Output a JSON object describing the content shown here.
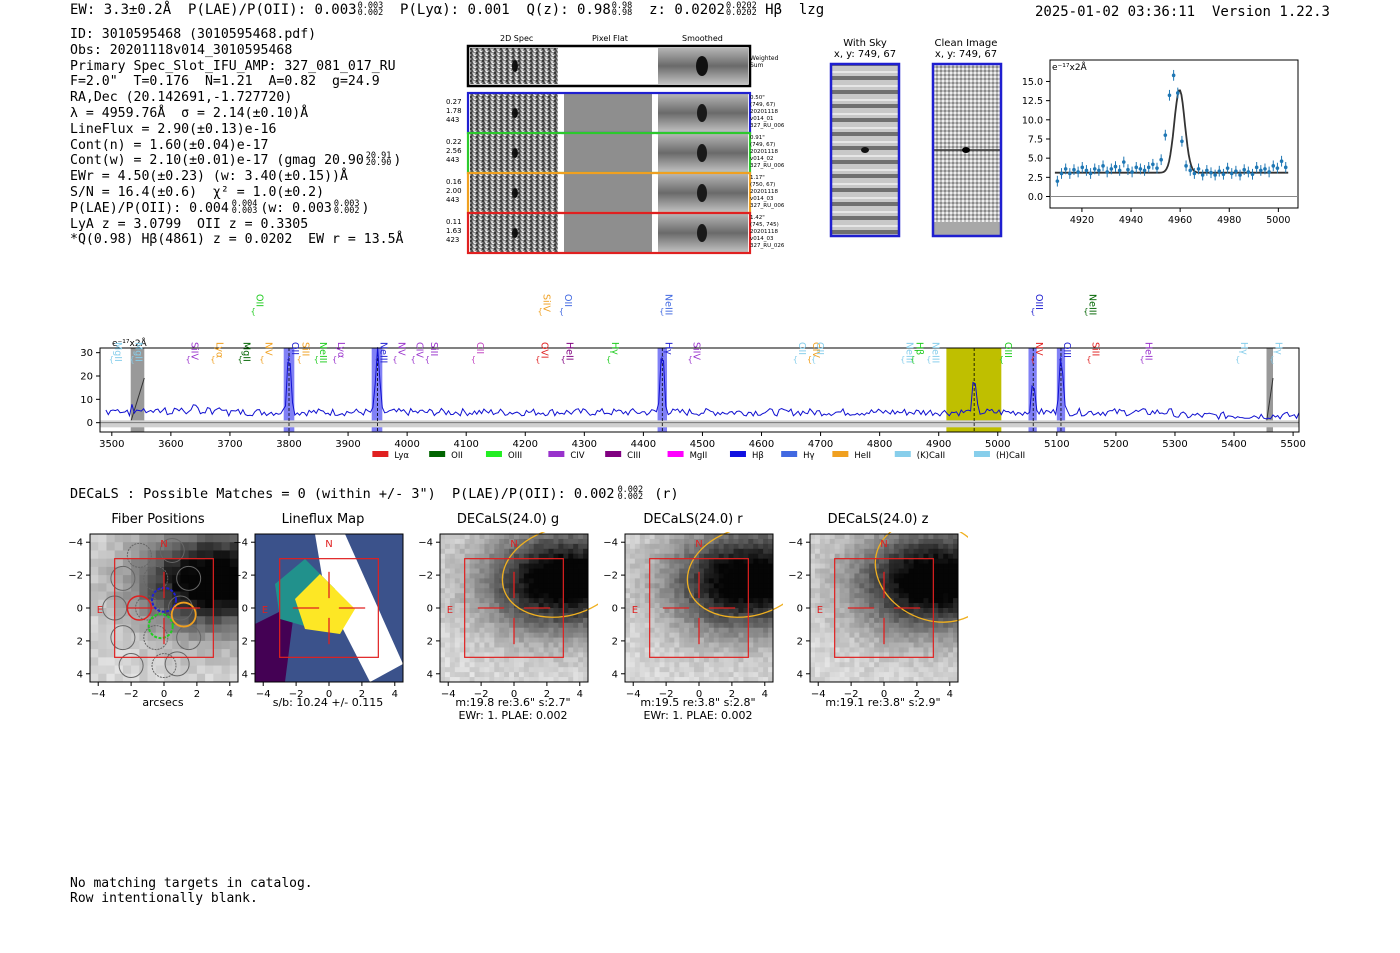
{
  "header": {
    "ew": "EW: 3.3±0.2Å",
    "plae_label": "P(LAE)/P(OII): 0.003",
    "plae_sup": "0.003",
    "plae_sub": "0.002",
    "plya": "P(Lyα): 0.001",
    "qz_label": "Q(z): 0.98",
    "qz_sup": "0.98",
    "qz_sub": "0.98",
    "z_label": "z: 0.0202",
    "z_sup": "0.0202",
    "z_sub": "0.0202",
    "line_id": "Hβ",
    "flag": "lzg",
    "datetime": "2025-01-02 03:36:11",
    "version": "Version 1.22.3"
  },
  "info": {
    "id": "ID: 3010595468 (3010595468.pdf)",
    "obs": "Obs: 20201118v014_3010595468",
    "primary": "Primary Spec_Slot_IFU_AMP: 327_081_017_RU",
    "params": "F=2.0\"  T=0.176  N=1.21  A=0.82  g=24.9",
    "radec": "RA,Dec (20.142691,-1.727720)",
    "lambda": "λ = 4959.76Å  σ = 2.14(±0.10)Å",
    "lineflux": "LineFlux = 2.90(±0.13)e-16",
    "contn": "Cont(n) = 1.60(±0.04)e-17",
    "contw_main": "Cont(w) = 2.10(±0.01)e-17 (gmag 20.90",
    "contw_sup": "20.91",
    "contw_sub": "20.90",
    "contw_end": ")",
    "ewr": "EWr = 4.50(±0.23) (w: 3.40(±0.15))Å",
    "sn": "S/N = 16.4(±0.6)  χ² = 1.0(±0.2)",
    "plae_main": "P(LAE)/P(OII): 0.004",
    "plae_sup": "0.004",
    "plae_sub": "0.003",
    "plae_w": "(w: 0.003",
    "plae_w_sup": "0.003",
    "plae_w_sub": "0.002",
    "plae_end": ")",
    "lya": "LyA z = 3.0799  OII z = 0.3305",
    "q": "*Q(0.98) Hβ(4861) z = 0.0202  EW r = 13.5Å"
  },
  "cutouts": {
    "col_titles": [
      "2D Spec",
      "Pixel Flat",
      "Smoothed"
    ],
    "weighted_label": "Weighted\nSum",
    "rows": [
      {
        "stats": [
          "0.27",
          "1.78",
          "443"
        ],
        "meta": [
          "0.50\"",
          "(749, 67)",
          "20201118",
          "v014_01",
          "327_RU_006"
        ],
        "color": "#1f1fd0"
      },
      {
        "stats": [
          "0.22",
          "2.56",
          "443"
        ],
        "meta": [
          "0.91\"",
          "(749, 67)",
          "20201118",
          "v014_02",
          "327_RU_006"
        ],
        "color": "#2cc92c"
      },
      {
        "stats": [
          "0.16",
          "2.00",
          "443"
        ],
        "meta": [
          "1.17\"",
          "(750, 67)",
          "20201118",
          "v014_03",
          "327_RU_006"
        ],
        "color": "#f0a020"
      },
      {
        "stats": [
          "0.11",
          "1.63",
          "423"
        ],
        "meta": [
          "1.42\"",
          "(745, 745)",
          "20201118",
          "v014_03",
          "327_RU_026"
        ],
        "color": "#e02020"
      }
    ]
  },
  "sky": {
    "with_sky_title": "With Sky",
    "with_sky_xy": "x, y: 749, 67",
    "clean_title": "Clean Image",
    "clean_xy": "x, y: 749, 67"
  },
  "chart_data": [
    {
      "type": "scatter",
      "id": "line_fit",
      "units_label": "e⁻¹⁷x2Å",
      "xlim": [
        4907,
        5008
      ],
      "ylim": [
        -1.5,
        17.8
      ],
      "xticks": [
        4920,
        4940,
        4960,
        4980,
        5000
      ],
      "yticks": [
        0.0,
        2.5,
        5.0,
        7.5,
        10.0,
        12.5,
        15.0
      ],
      "ytick_labels": [
        "0.0",
        "2.5",
        "5.0",
        "7.5",
        "10.0",
        "12.5",
        "15.0"
      ],
      "points_y": [
        2.0,
        3.0,
        3.6,
        3.0,
        3.5,
        3.2,
        3.8,
        3.4,
        3.0,
        3.6,
        3.4,
        4.0,
        3.2,
        3.6,
        3.9,
        3.4,
        4.5,
        3.5,
        3.2,
        3.8,
        3.6,
        3.4,
        3.8,
        4.2,
        3.7,
        4.8,
        8.0,
        13.2,
        15.8,
        13.5,
        7.2,
        4.0,
        3.4,
        3.0,
        3.6,
        2.8,
        3.4,
        3.1,
        2.8,
        3.3,
        2.9,
        3.7,
        3.0,
        3.3,
        2.8,
        3.5,
        3.2,
        2.9,
        3.8,
        3.4,
        3.6,
        3.2,
        4.0,
        3.7,
        4.6,
        3.8
      ],
      "fit": {
        "continuum": 3.1,
        "amplitude": 10.8,
        "center": 4959.76,
        "sigma": 2.14
      }
    },
    {
      "type": "line",
      "id": "full_spectrum",
      "units_label": "e⁻¹⁷x2Å",
      "xlim": [
        3480,
        5510
      ],
      "ylim": [
        -4,
        32
      ],
      "xticks": [
        3500,
        3600,
        3700,
        3800,
        3900,
        4000,
        4100,
        4200,
        4300,
        4400,
        4500,
        4600,
        4700,
        4800,
        4900,
        5000,
        5100,
        5200,
        5300,
        5400,
        5500
      ],
      "yticks": [
        0,
        10,
        20,
        30
      ],
      "peaks": [
        {
          "x": 3800,
          "h": 28
        },
        {
          "x": 3950,
          "h": 28
        },
        {
          "x": 4432,
          "h": 28
        },
        {
          "x": 4960,
          "h": 14
        },
        {
          "x": 5060,
          "h": 12
        },
        {
          "x": 5107,
          "h": 26
        }
      ],
      "bands_blue": [
        [
          3791,
          3809
        ],
        [
          3940,
          3958
        ],
        [
          4424,
          4440
        ],
        [
          5052,
          5066
        ],
        [
          5100,
          5114
        ]
      ],
      "bands_gray": [
        [
          3532,
          3555
        ],
        [
          5455,
          5466
        ]
      ],
      "band_yellow": [
        4913,
        5006
      ],
      "dashed_x": [
        3800,
        3950,
        4432,
        4960,
        5060,
        5107
      ],
      "line_labels": [
        {
          "x": 3500,
          "label": "MgII",
          "color": "#87ceeb",
          "tier": 2
        },
        {
          "x": 3535,
          "label": "MgII",
          "color": "#87ceeb",
          "tier": 2
        },
        {
          "x": 3630,
          "label": "SiIV",
          "color": "#9932cc",
          "tier": 2
        },
        {
          "x": 3672,
          "label": "Lyα",
          "color": "#f0a020",
          "tier": 2
        },
        {
          "x": 3718,
          "label": "MgII",
          "color": "#006400",
          "tier": 2
        },
        {
          "x": 3740,
          "label": "OII",
          "color": "#22cc22",
          "tier": 0
        },
        {
          "x": 3755,
          "label": "NV",
          "color": "#f0a020",
          "tier": 2
        },
        {
          "x": 3800,
          "label": "OII",
          "color": "#1f1fd0",
          "tier": 2
        },
        {
          "x": 3818,
          "label": "SiII",
          "color": "#f0a020",
          "tier": 2
        },
        {
          "x": 3847,
          "label": "NeIII",
          "color": "#22cc22",
          "tier": 2
        },
        {
          "x": 3878,
          "label": "Lyα",
          "color": "#9932cc",
          "tier": 2
        },
        {
          "x": 3950,
          "label": "NeIII",
          "color": "#1f1fd0",
          "tier": 2
        },
        {
          "x": 3980,
          "label": "NV",
          "color": "#9932cc",
          "tier": 2
        },
        {
          "x": 4011,
          "label": "CIV",
          "color": "#9932cc",
          "tier": 2
        },
        {
          "x": 4035,
          "label": "SiII",
          "color": "#9932cc",
          "tier": 2
        },
        {
          "x": 4113,
          "label": "CII",
          "color": "#c040c0",
          "tier": 2
        },
        {
          "x": 4222,
          "label": "OVI",
          "color": "#e02020",
          "tier": 2
        },
        {
          "x": 4226,
          "label": "SiIV",
          "color": "#f0a020",
          "tier": 0
        },
        {
          "x": 4262,
          "label": "OII",
          "color": "#4169e1",
          "tier": 0
        },
        {
          "x": 4265,
          "label": "HeII",
          "color": "#800080",
          "tier": 2
        },
        {
          "x": 4342,
          "label": "Hγ",
          "color": "#22cc22",
          "tier": 2
        },
        {
          "x": 4432,
          "label": "Hγ",
          "color": "#1f1fd0",
          "tier": 2
        },
        {
          "x": 4432,
          "label": "NeIII",
          "color": "#4169e1",
          "tier": 0
        },
        {
          "x": 4480,
          "label": "SiIV",
          "color": "#9932cc",
          "tier": 2
        },
        {
          "x": 4658,
          "label": "OII",
          "color": "#87ceeb",
          "tier": 2
        },
        {
          "x": 4682,
          "label": "CIV",
          "color": "#f0a020",
          "tier": 2
        },
        {
          "x": 4689,
          "label": "OII",
          "color": "#87ceeb",
          "tier": 2
        },
        {
          "x": 4840,
          "label": "NeIII",
          "color": "#87ceeb",
          "tier": 2
        },
        {
          "x": 4857,
          "label": "Hβ",
          "color": "#22cc22",
          "tier": 2
        },
        {
          "x": 4884,
          "label": "NeIII",
          "color": "#87ceeb",
          "tier": 2
        },
        {
          "x": 5007,
          "label": "OIII",
          "color": "#22cc22",
          "tier": 2
        },
        {
          "x": 5060,
          "label": "NV",
          "color": "#e02020",
          "tier": 2
        },
        {
          "x": 5060,
          "label": "OIII",
          "color": "#1f1fd0",
          "tier": 0
        },
        {
          "x": 5107,
          "label": "OIII",
          "color": "#1f1fd0",
          "tier": 2
        },
        {
          "x": 5150,
          "label": "NeIII",
          "color": "#006400",
          "tier": 0
        },
        {
          "x": 5155,
          "label": "SiII",
          "color": "#e02020",
          "tier": 2
        },
        {
          "x": 5245,
          "label": "HeII",
          "color": "#9932cc",
          "tier": 2
        },
        {
          "x": 5407,
          "label": "Hγ",
          "color": "#87ceeb",
          "tier": 2
        },
        {
          "x": 5465,
          "label": "Hγ",
          "color": "#87ceeb",
          "tier": 2
        }
      ],
      "legend": [
        {
          "label": "Lyα",
          "color": "#e02020"
        },
        {
          "label": "OII",
          "color": "#006400"
        },
        {
          "label": "OIII",
          "color": "#22ee22"
        },
        {
          "label": "CIV",
          "color": "#9932cc"
        },
        {
          "label": "CIII",
          "color": "#800080"
        },
        {
          "label": "MgII",
          "color": "#ff00ff"
        },
        {
          "label": "Hβ",
          "color": "#1010e0"
        },
        {
          "label": "Hγ",
          "color": "#4169e1"
        },
        {
          "label": "HeII",
          "color": "#f0a020"
        },
        {
          "label": "(K)CaII",
          "color": "#87ceeb"
        },
        {
          "label": "(H)CaII",
          "color": "#87ceeb"
        }
      ]
    }
  ],
  "decals": {
    "header": "DECaLS : Possible Matches = 0 (within +/- 3\")  P(LAE)/P(OII): 0.002",
    "header_sup": "0.002",
    "header_sub": "0.002",
    "header_end": "(r)",
    "panels": [
      {
        "title": "Fiber Positions",
        "sub1": "arcsecs",
        "sub2": ""
      },
      {
        "title": "Lineflux Map",
        "sub1": "s/b: 10.24 +/- 0.115",
        "sub2": ""
      },
      {
        "title": "DECaLS(24.0) g",
        "sub1": "m:19.8  re:3.6\"  s:2.7\"",
        "sub2": "EWr: 1. PLAE: 0.002"
      },
      {
        "title": "DECaLS(24.0) r",
        "sub1": "m:19.5  re:3.8\"  s:2.8\"",
        "sub2": "EWr: 1. PLAE: 0.002"
      },
      {
        "title": "DECaLS(24.0) z",
        "sub1": "m:19.1  re:3.8\"  s:2.9\"",
        "sub2": ""
      }
    ],
    "axis_ticks": [
      "−4",
      "−2",
      "0",
      "2",
      "4"
    ],
    "north": "N",
    "east": "E"
  },
  "footer": {
    "line1": "No matching targets in catalog.",
    "line2": "Row intentionally blank."
  }
}
